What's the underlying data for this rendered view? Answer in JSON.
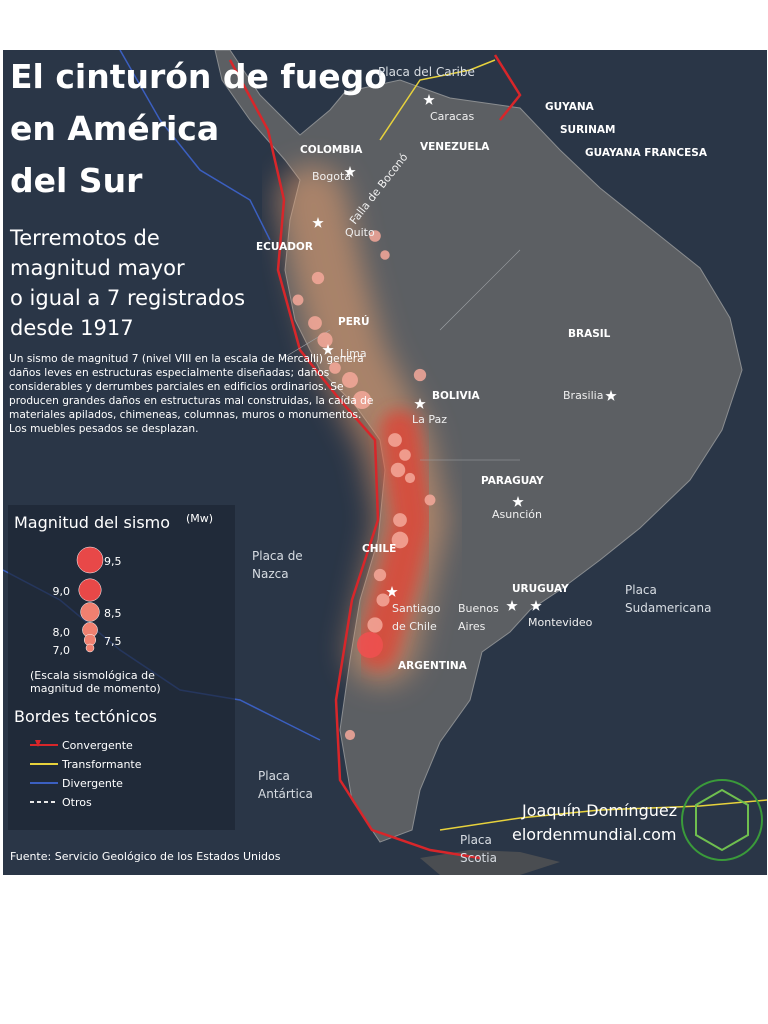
{
  "title": [
    "El cinturón de fuego",
    "en América",
    "del Sur"
  ],
  "subtitle": [
    "Terremotos de",
    "magnitud mayor",
    "o igual a 7 registrados",
    "desde 1917"
  ],
  "description": "Un sismo de magnitud 7 (nivel VIII en la escala de Mercalli) genera daños leves en estructuras especialmente diseñadas; daños considerables y derrumbes parciales en edificios ordinarios. Se producen grandes daños en estructuras mal construidas, la caída de materiales apilados, chimeneas, columnas, muros o monumentos. Los muebles pesados se desplazan.",
  "legend": {
    "magnitude_title": "Magnitud del sismo",
    "magnitude_unit": "(Mw)",
    "magnitudes": [
      {
        "value": 9.5,
        "label": "9,5"
      },
      {
        "value": 9.0,
        "label": "9,0"
      },
      {
        "value": 8.5,
        "label": "8,5"
      },
      {
        "value": 8.0,
        "label": "8,0"
      },
      {
        "value": 7.5,
        "label": "7,5"
      },
      {
        "value": 7.0,
        "label": "7,0"
      }
    ],
    "scale_note": [
      "(Escala sismológica de",
      "magnitud de momento)"
    ],
    "borders_title": "Bordes tectónicos",
    "borders": [
      {
        "name": "Convergente",
        "color": "#d8262a"
      },
      {
        "name": "Transformante",
        "color": "#e7d23c"
      },
      {
        "name": "Divergente",
        "color": "#3b5fc0"
      },
      {
        "name": "Otros",
        "color": "#e8e8e8"
      }
    ]
  },
  "countries": [
    "GUYANA",
    "SURINAM",
    "GUAYANA FRANCESA",
    "COLOMBIA",
    "VENEZUELA",
    "ECUADOR",
    "PERÚ",
    "BOLIVIA",
    "BRASIL",
    "PARAGUAY",
    "CHILE",
    "URUGUAY",
    "ARGENTINA"
  ],
  "cities": [
    [
      "Caracas"
    ],
    [
      "Bogotá"
    ],
    [
      "Quito"
    ],
    [
      "Lima"
    ],
    [
      "La Paz"
    ],
    [
      "Brasilia"
    ],
    [
      "Asunción"
    ],
    [
      "Santiago",
      "de Chile"
    ],
    [
      "Buenos",
      "Aires"
    ],
    [
      "Montevideo"
    ]
  ],
  "plates": [
    [
      "Placa del Caribe"
    ],
    [
      "Placa de",
      "Nazca"
    ],
    [
      "Placa",
      "Sudamericana"
    ],
    [
      "Placa",
      "Antártica"
    ],
    [
      "Placa",
      "Scotia"
    ]
  ],
  "fault": "Falla de Boconó",
  "earthquakes": [
    7.5,
    7.2,
    7.6,
    7.4,
    7.8,
    8.0,
    7.5,
    8.1,
    8.4,
    7.8,
    7.5,
    7.9,
    7.3,
    7.4,
    7.8,
    8.2,
    7.6,
    7.7,
    8.0,
    9.5,
    7.6,
    7.3
  ],
  "credit": {
    "author": "Joaquín Domínguez",
    "site": "elordenmundial.com"
  },
  "source": "Fuente: Servicio Geológico de los Estados Unidos"
}
